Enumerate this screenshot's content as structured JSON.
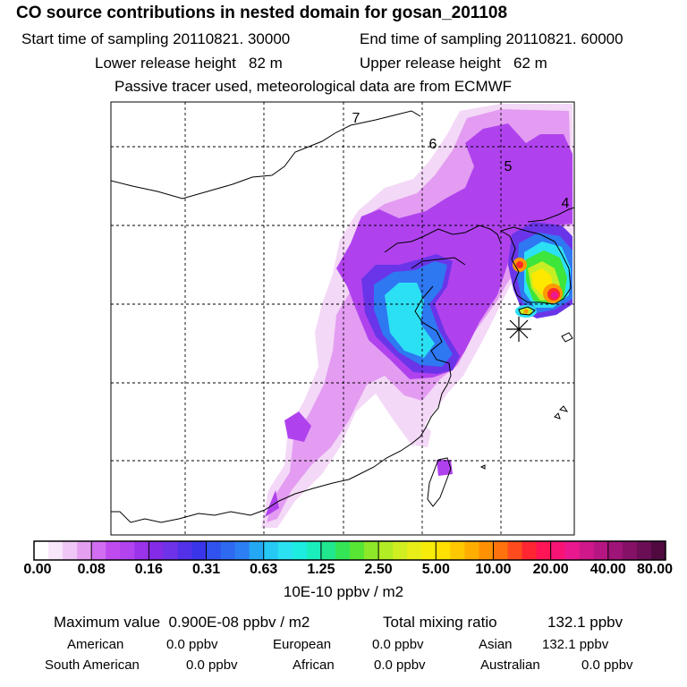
{
  "title": "CO  source contributions in nested domain for gosan_201108",
  "header": {
    "start_label": "Start time of sampling",
    "start_value": "20110821. 30000",
    "end_label": "End time of sampling",
    "end_value": "20110821. 60000",
    "lower_label": "Lower release height",
    "lower_value": "82 m",
    "upper_label": "Upper release height",
    "upper_value": "62 m",
    "note": "Passive tracer used, meteorological data are from ECMWF"
  },
  "chart_data": {
    "type": "heatmap",
    "map_labels": [
      "7",
      "6",
      "5",
      "4"
    ],
    "colorbar": {
      "ticks": [
        "0.00",
        "0.08",
        "0.16",
        "0.31",
        "0.63",
        "1.25",
        "2.50",
        "5.00",
        "10.00",
        "20.00",
        "40.00",
        "80.00"
      ],
      "unit": "10E-10 ppbv / m2"
    },
    "colors": {
      "light_lavender": "#f4d8f7",
      "light_purple": "#e39cf1",
      "purple": "#b042ee",
      "blue_violet": "#6a35e8",
      "blue": "#2e78f2",
      "cyan": "#2ce0f4",
      "green": "#3ee53a",
      "yellow_green": "#c6ee24",
      "yellow": "#ffe800",
      "orange": "#ff9a00",
      "red": "#ff2a2a",
      "magenta": "#ee1890",
      "dark_purple": "#7a1060",
      "station": "#000000"
    }
  },
  "summary": {
    "max_label": "Maximum value",
    "max_value": "0.900E-08 ppbv / m2",
    "total_label": "Total mixing ratio",
    "total_value": "132.1 ppbv",
    "sources": [
      {
        "name": "American",
        "value": "0.0 ppbv"
      },
      {
        "name": "European",
        "value": "0.0 ppbv"
      },
      {
        "name": "Asian",
        "value": "132.1 ppbv"
      },
      {
        "name": "South American",
        "value": "0.0 ppbv"
      },
      {
        "name": "African",
        "value": "0.0 ppbv"
      },
      {
        "name": "Australian",
        "value": "0.0 ppbv"
      }
    ]
  }
}
